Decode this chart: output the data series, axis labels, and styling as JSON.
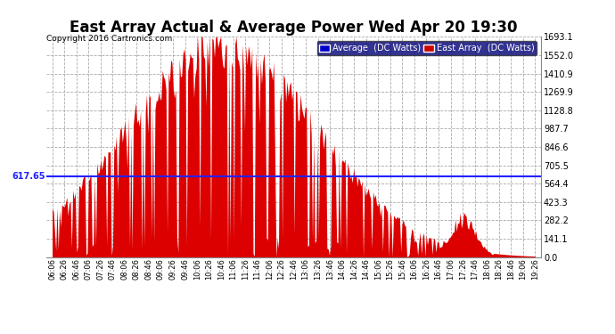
{
  "title": "East Array Actual & Average Power Wed Apr 20 19:30",
  "copyright": "Copyright 2016 Cartronics.com",
  "legend_labels": [
    "Average  (DC Watts)",
    "East Array  (DC Watts)"
  ],
  "legend_colors_bg": [
    "#0000cc",
    "#cc0000"
  ],
  "avg_value": 617.65,
  "avg_label": "617.65",
  "ymax": 1693.1,
  "ymin": 0.0,
  "yticks": [
    0.0,
    141.1,
    282.2,
    423.3,
    564.4,
    705.5,
    846.6,
    987.7,
    1128.8,
    1269.9,
    1410.9,
    1552.0,
    1693.1
  ],
  "background_color": "#ffffff",
  "plot_bg_color": "#ffffff",
  "grid_color": "#aaaaaa",
  "area_color": "#dd0000",
  "avg_line_color": "#2222ff",
  "title_fontsize": 12
}
